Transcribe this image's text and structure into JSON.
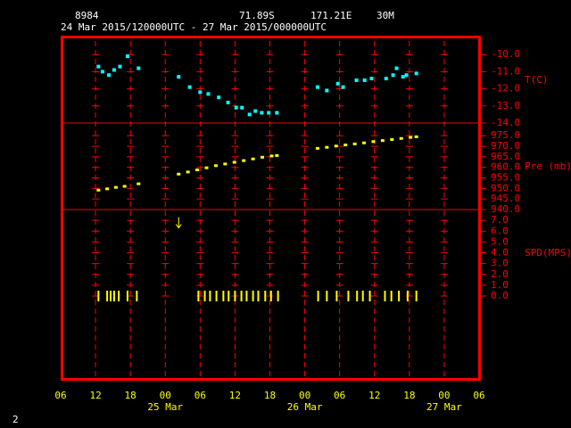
{
  "header": {
    "station": "8984",
    "lat": "71.89S",
    "lon": "171.21E",
    "elevation": "30M",
    "period": "24 Mar 2015/120000UTC - 27 Mar 2015/000000UTC",
    "page": "2"
  },
  "chart_data": [
    {
      "type": "scatter",
      "label": "T(C)",
      "color": "#00ffff",
      "x": [
        12.5,
        13.2,
        14.3,
        15.2,
        16.2,
        17.5,
        19.4,
        26.3,
        28.2,
        30.0,
        31.4,
        33.2,
        34.8,
        36.2,
        37.2,
        38.5,
        39.5,
        40.6,
        41.8,
        43.2,
        50.2,
        51.8,
        53.7,
        54.6,
        56.9,
        58.3,
        59.5,
        62.0,
        63.2,
        63.8,
        64.9,
        65.5,
        67.2
      ],
      "values": [
        -10.7,
        -11.0,
        -11.2,
        -10.9,
        -10.7,
        -10.1,
        -10.8,
        -11.3,
        -11.9,
        -12.2,
        -12.3,
        -12.5,
        -12.8,
        -13.1,
        -13.1,
        -13.5,
        -13.3,
        -13.4,
        -13.4,
        -13.4,
        -11.9,
        -12.1,
        -11.7,
        -11.9,
        -11.5,
        -11.5,
        -11.4,
        -11.4,
        -11.2,
        -10.8,
        -11.3,
        -11.2,
        -11.1
      ],
      "ylim": [
        -14,
        -9
      ],
      "yticks": [
        {
          "value": -10,
          "label": "-10.0"
        },
        {
          "value": -11,
          "label": "-11.0"
        },
        {
          "value": -12,
          "label": "-12.0"
        },
        {
          "value": -13,
          "label": "-13.0"
        },
        {
          "value": -14,
          "label": "-14.0"
        }
      ]
    },
    {
      "type": "scatter",
      "label": "Pre (mb)",
      "color": "#ffff00",
      "x": [
        12.5,
        14.0,
        15.5,
        17.0,
        19.4,
        26.3,
        27.9,
        29.5,
        31.1,
        32.7,
        34.3,
        35.9,
        37.5,
        39.1,
        40.7,
        42.3,
        43.2,
        50.2,
        51.8,
        53.4,
        55.0,
        56.6,
        58.2,
        59.8,
        61.4,
        63.0,
        64.6,
        66.2,
        67.2
      ],
      "values": [
        949.2,
        949.8,
        950.5,
        951.0,
        952.2,
        956.8,
        957.8,
        958.8,
        959.8,
        960.8,
        961.6,
        962.4,
        963.2,
        964.0,
        964.8,
        965.4,
        965.6,
        969.0,
        969.5,
        970.1,
        970.6,
        971.1,
        971.6,
        972.2,
        972.7,
        973.2,
        973.7,
        974.2,
        974.5
      ],
      "ylim": [
        940,
        981
      ],
      "yticks": [
        {
          "value": 975,
          "label": "975.0"
        },
        {
          "value": 970,
          "label": "970.0"
        },
        {
          "value": 965,
          "label": "965.0"
        },
        {
          "value": 960,
          "label": "960.0"
        },
        {
          "value": 955,
          "label": "955.0"
        },
        {
          "value": 950,
          "label": "950.0"
        },
        {
          "value": 945,
          "label": "945.0"
        },
        {
          "value": 940,
          "label": "940.0"
        }
      ]
    },
    {
      "type": "wind",
      "label": "SPD(MPS)",
      "color": "#ffff00",
      "x": [
        12.5,
        14.0,
        14.6,
        15.2,
        16.0,
        17.5,
        19.1,
        26.3,
        29.7,
        30.8,
        31.7,
        32.8,
        34.0,
        34.9,
        36.0,
        37.1,
        38.0,
        39.1,
        40.0,
        41.2,
        42.2,
        43.4,
        50.3,
        51.8,
        53.5,
        55.5,
        57.0,
        58.0,
        59.2,
        61.8,
        62.9,
        64.2,
        65.7,
        67.2
      ],
      "values": [
        0,
        0,
        0,
        0,
        0,
        0,
        0,
        6.8,
        0,
        0,
        0,
        0,
        0,
        0,
        0,
        0,
        0,
        0,
        0,
        0,
        0,
        0,
        0,
        0,
        0,
        0,
        0,
        0,
        0,
        0,
        0,
        0,
        0,
        0
      ],
      "ylim": [
        0,
        8
      ],
      "yticks": [
        {
          "value": 7,
          "label": "7.0"
        },
        {
          "value": 6,
          "label": "6.0"
        },
        {
          "value": 5,
          "label": "5.0"
        },
        {
          "value": 4,
          "label": "4.0"
        },
        {
          "value": 3,
          "label": "3.0"
        },
        {
          "value": 2,
          "label": "2.0"
        },
        {
          "value": 1,
          "label": "1.0"
        },
        {
          "value": 0,
          "label": "0.0"
        }
      ],
      "xlim": [
        6,
        78
      ],
      "xticks": [
        {
          "value": 6,
          "label": "06"
        },
        {
          "value": 12,
          "label": "12"
        },
        {
          "value": 18,
          "label": "18"
        },
        {
          "value": 24,
          "label": "00"
        },
        {
          "value": 30,
          "label": "06"
        },
        {
          "value": 36,
          "label": "12"
        },
        {
          "value": 42,
          "label": "18"
        },
        {
          "value": 48,
          "label": "00"
        },
        {
          "value": 54,
          "label": "06"
        },
        {
          "value": 60,
          "label": "12"
        },
        {
          "value": 66,
          "label": "18"
        },
        {
          "value": 72,
          "label": "00"
        },
        {
          "value": 78,
          "label": "06"
        }
      ],
      "dates": [
        {
          "value": 24,
          "label": "25 Mar"
        },
        {
          "value": 48,
          "label": "26 Mar"
        },
        {
          "value": 72,
          "label": "27 Mar"
        }
      ]
    }
  ]
}
